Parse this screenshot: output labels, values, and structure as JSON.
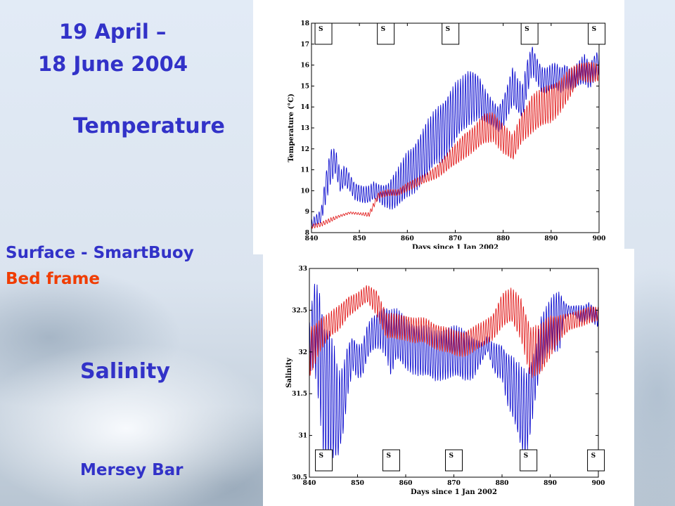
{
  "slide": {
    "title_line1": "19 April –",
    "title_line2": "18 June 2004",
    "temperature_label": "Temperature",
    "surface_label": "Surface - SmartBuoy",
    "bed_label": "Bed frame",
    "salinity_label": "Salinity",
    "location_label": "Mersey Bar"
  },
  "colors": {
    "heading": "#3232c8",
    "surface_series": "#0000cc",
    "bed_series": "#e01010",
    "bed_label": "#f03c00"
  },
  "chart_data": [
    {
      "type": "line",
      "xlabel": "Days since 1 Jan 2002",
      "ylabel": "Temperature (°C)",
      "xlim": [
        840,
        900
      ],
      "ylim": [
        8,
        18
      ],
      "xticks": [
        "840",
        "850",
        "860",
        "870",
        "880",
        "890",
        "900"
      ],
      "yticks": [
        "8",
        "9",
        "10",
        "11",
        "12",
        "13",
        "14",
        "15",
        "16",
        "17",
        "18"
      ],
      "grid": false,
      "legend": "none",
      "markers": {
        "label": "S",
        "x": [
          842.5,
          855.5,
          869,
          885.5,
          899.5
        ]
      },
      "series": [
        {
          "color": "#0000cc",
          "x": [
            840,
            842,
            843,
            844,
            845,
            846,
            847,
            848,
            849,
            850,
            851,
            852,
            853,
            854,
            855,
            856,
            857,
            858,
            859,
            860,
            861,
            862,
            863,
            864,
            865,
            866,
            867,
            868,
            869,
            870,
            871,
            872,
            873,
            874,
            875,
            876,
            877,
            878,
            879,
            880,
            881,
            882,
            883,
            884,
            885,
            886,
            887,
            888,
            889,
            890,
            891,
            892,
            893,
            894,
            895,
            896,
            897,
            898,
            899,
            900
          ],
          "y": [
            8.4,
            8.8,
            10.2,
            11.2,
            11.4,
            10.4,
            10.7,
            10.4,
            10.0,
            9.9,
            9.8,
            9.8,
            10.0,
            9.9,
            9.8,
            9.8,
            9.9,
            10.1,
            10.4,
            10.8,
            11.0,
            11.3,
            11.6,
            11.9,
            12.2,
            12.6,
            12.8,
            13.1,
            13.4,
            13.7,
            13.9,
            14.2,
            14.5,
            14.6,
            14.5,
            14.1,
            13.8,
            13.6,
            13.4,
            13.8,
            14.4,
            15.0,
            14.5,
            14.2,
            15.4,
            16.3,
            15.8,
            15.3,
            15.2,
            15.4,
            15.5,
            15.3,
            15.5,
            15.3,
            15.4,
            15.6,
            15.8,
            15.5,
            15.9,
            16.2
          ],
          "amp": [
            0.2,
            0.3,
            0.7,
            0.8,
            0.6,
            0.5,
            0.5,
            0.4,
            0.4,
            0.4,
            0.4,
            0.4,
            0.4,
            0.4,
            0.5,
            0.6,
            0.8,
            0.9,
            1.0,
            1.1,
            1.1,
            1.2,
            1.2,
            1.3,
            1.3,
            1.3,
            1.4,
            1.4,
            1.4,
            1.4,
            1.3,
            1.3,
            1.3,
            1.2,
            1.0,
            0.8,
            0.7,
            0.6,
            0.6,
            0.7,
            0.8,
            0.9,
            0.8,
            0.8,
            0.8,
            0.7,
            0.6,
            0.6,
            0.6,
            0.6,
            0.6,
            0.6,
            0.6,
            0.5,
            0.5,
            0.6,
            0.7,
            0.6,
            0.6,
            0.6
          ]
        },
        {
          "color": "#e01010",
          "x": [
            840,
            842,
            844,
            846,
            848,
            850,
            852,
            854,
            856,
            858,
            860,
            862,
            864,
            866,
            868,
            870,
            872,
            874,
            876,
            878,
            880,
            882,
            884,
            886,
            888,
            890,
            892,
            894,
            896,
            898,
            900
          ],
          "y": [
            8.3,
            8.4,
            8.6,
            8.8,
            8.95,
            8.9,
            8.85,
            9.8,
            9.9,
            9.9,
            10.2,
            10.4,
            10.6,
            10.9,
            11.3,
            11.7,
            12.2,
            12.5,
            12.9,
            13.1,
            12.5,
            12.0,
            13.1,
            13.7,
            13.9,
            14.2,
            14.6,
            15.1,
            15.7,
            15.7,
            15.6
          ],
          "amp": [
            0.1,
            0.1,
            0.1,
            0.05,
            0.05,
            0.05,
            0.1,
            0.15,
            0.15,
            0.15,
            0.2,
            0.2,
            0.2,
            0.3,
            0.4,
            0.5,
            0.6,
            0.6,
            0.7,
            0.7,
            0.7,
            0.6,
            0.7,
            0.9,
            0.9,
            0.9,
            0.8,
            0.7,
            0.4,
            0.5,
            0.4
          ]
        }
      ]
    },
    {
      "type": "line",
      "xlabel": "Days since 1 Jan 2002",
      "ylabel": "Salinity",
      "xlim": [
        840,
        900
      ],
      "ylim": [
        30.5,
        33
      ],
      "xticks": [
        "840",
        "850",
        "860",
        "870",
        "880",
        "890",
        "900"
      ],
      "yticks": [
        "30.5",
        "31",
        "31.5",
        "32",
        "32.5",
        "33"
      ],
      "grid": false,
      "legend": "none",
      "markers": {
        "label": "S",
        "x": [
          843,
          857,
          870,
          885.5,
          899.5
        ]
      },
      "series": [
        {
          "color": "#0000cc",
          "x": [
            840,
            841,
            842,
            843,
            844,
            845,
            846,
            847,
            848,
            849,
            850,
            851,
            852,
            853,
            854,
            855,
            856,
            857,
            858,
            860,
            862,
            864,
            866,
            868,
            870,
            872,
            874,
            876,
            877,
            878,
            879,
            880,
            881,
            882,
            883,
            884,
            885,
            886,
            887,
            888,
            889,
            890,
            891,
            892,
            893,
            894,
            895,
            896,
            897,
            898,
            899,
            900
          ],
          "y": [
            32.0,
            32.3,
            32.1,
            31.6,
            31.5,
            31.4,
            31.2,
            31.4,
            31.8,
            32.0,
            31.9,
            31.9,
            32.1,
            32.2,
            32.25,
            32.3,
            32.25,
            32.1,
            32.2,
            32.1,
            32.05,
            32.0,
            31.95,
            32.0,
            32.0,
            31.95,
            31.95,
            32.0,
            32.1,
            31.95,
            31.9,
            31.9,
            31.7,
            31.6,
            31.45,
            31.3,
            31.25,
            31.5,
            31.8,
            32.1,
            32.2,
            32.3,
            32.35,
            32.4,
            32.5,
            32.5,
            32.5,
            32.45,
            32.45,
            32.5,
            32.45,
            32.4
          ],
          "amp": [
            0.3,
            0.5,
            0.7,
            0.8,
            0.8,
            0.7,
            0.5,
            0.4,
            0.3,
            0.2,
            0.2,
            0.2,
            0.2,
            0.2,
            0.2,
            0.25,
            0.3,
            0.4,
            0.3,
            0.3,
            0.3,
            0.3,
            0.3,
            0.3,
            0.3,
            0.3,
            0.25,
            0.1,
            0.1,
            0.15,
            0.2,
            0.2,
            0.3,
            0.35,
            0.4,
            0.5,
            0.5,
            0.4,
            0.3,
            0.3,
            0.3,
            0.3,
            0.35,
            0.35,
            0.1,
            0.05,
            0.05,
            0.1,
            0.1,
            0.1,
            0.1,
            0.1
          ]
        },
        {
          "color": "#e01010",
          "x": [
            840,
            842,
            844,
            846,
            848,
            850,
            852,
            854,
            856,
            858,
            860,
            862,
            864,
            866,
            868,
            870,
            872,
            874,
            876,
            878,
            880,
            882,
            884,
            886,
            888,
            890,
            892,
            894,
            896,
            898,
            900
          ],
          "y": [
            32.0,
            32.2,
            32.3,
            32.4,
            32.55,
            32.6,
            32.7,
            32.6,
            32.3,
            32.3,
            32.3,
            32.25,
            32.25,
            32.2,
            32.15,
            32.1,
            32.1,
            32.15,
            32.2,
            32.3,
            32.5,
            32.55,
            32.4,
            32.0,
            32.0,
            32.2,
            32.3,
            32.35,
            32.4,
            32.45,
            32.45
          ],
          "amp": [
            0.3,
            0.2,
            0.15,
            0.15,
            0.12,
            0.1,
            0.1,
            0.15,
            0.15,
            0.15,
            0.15,
            0.15,
            0.15,
            0.15,
            0.15,
            0.15,
            0.15,
            0.15,
            0.15,
            0.15,
            0.2,
            0.2,
            0.25,
            0.3,
            0.3,
            0.25,
            0.15,
            0.1,
            0.1,
            0.1,
            0.08
          ]
        }
      ]
    }
  ]
}
